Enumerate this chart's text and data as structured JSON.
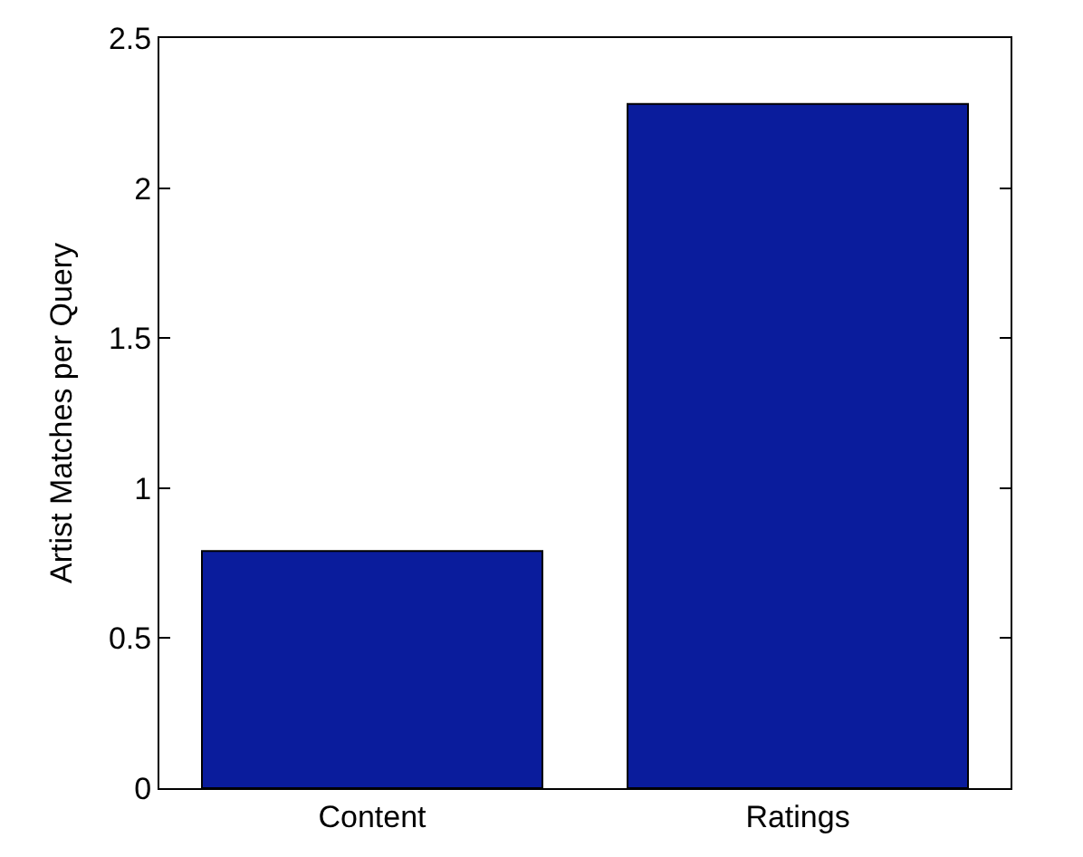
{
  "chart_data": {
    "type": "bar",
    "ylabel": "Artist Matches per Query",
    "categories": [
      "Content",
      "Ratings"
    ],
    "values": [
      0.79,
      2.28
    ],
    "color": "#0a1c9c",
    "ylim": [
      0,
      2.5
    ],
    "yticks": [
      0,
      0.5,
      1,
      1.5,
      2,
      2.5
    ]
  }
}
